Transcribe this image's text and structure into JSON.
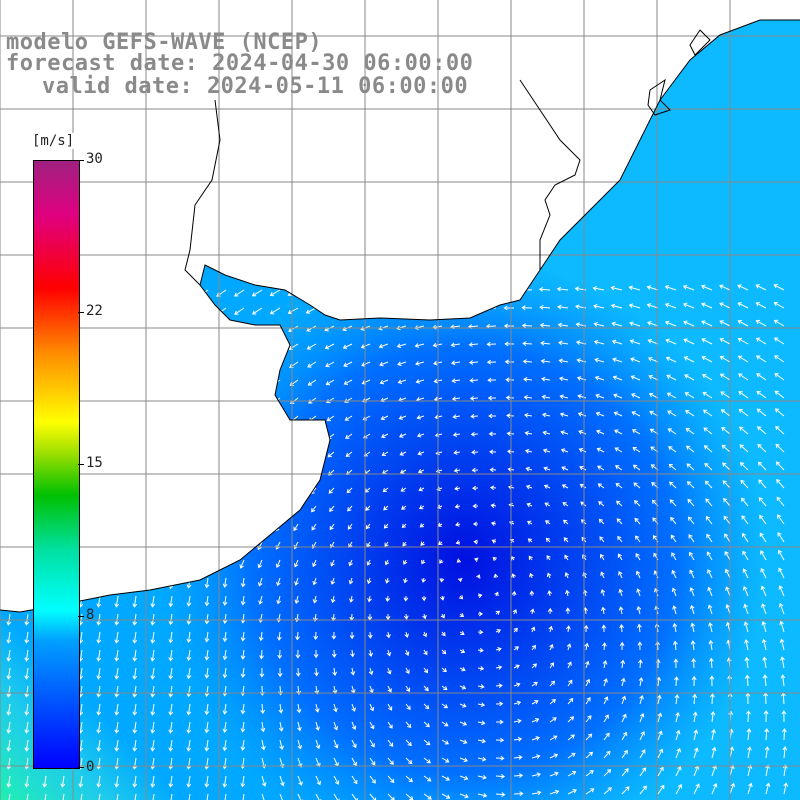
{
  "title": {
    "line1": "modelo GEFS-WAVE (NCEP)",
    "line2": "forecast date: 2024-04-30 06:00:00",
    "line3": "valid date: 2024-05-11 06:00:00"
  },
  "colorbar": {
    "units": "[m/s]",
    "ticks": [
      "30",
      "22",
      "15",
      "8",
      "0"
    ],
    "tick_values": [
      30,
      22,
      15,
      8,
      0
    ],
    "range": [
      0,
      30
    ],
    "colors": [
      "#0000ff",
      "#00a0ff",
      "#00ffff",
      "#00c000",
      "#ffff00",
      "#ff9000",
      "#ff0000",
      "#a02080"
    ]
  },
  "map": {
    "field": "wind speed and direction",
    "grid_lines": true,
    "land_color": "#ffffff",
    "coastline_color": "#000000",
    "vector_color": "#ffffff"
  }
}
